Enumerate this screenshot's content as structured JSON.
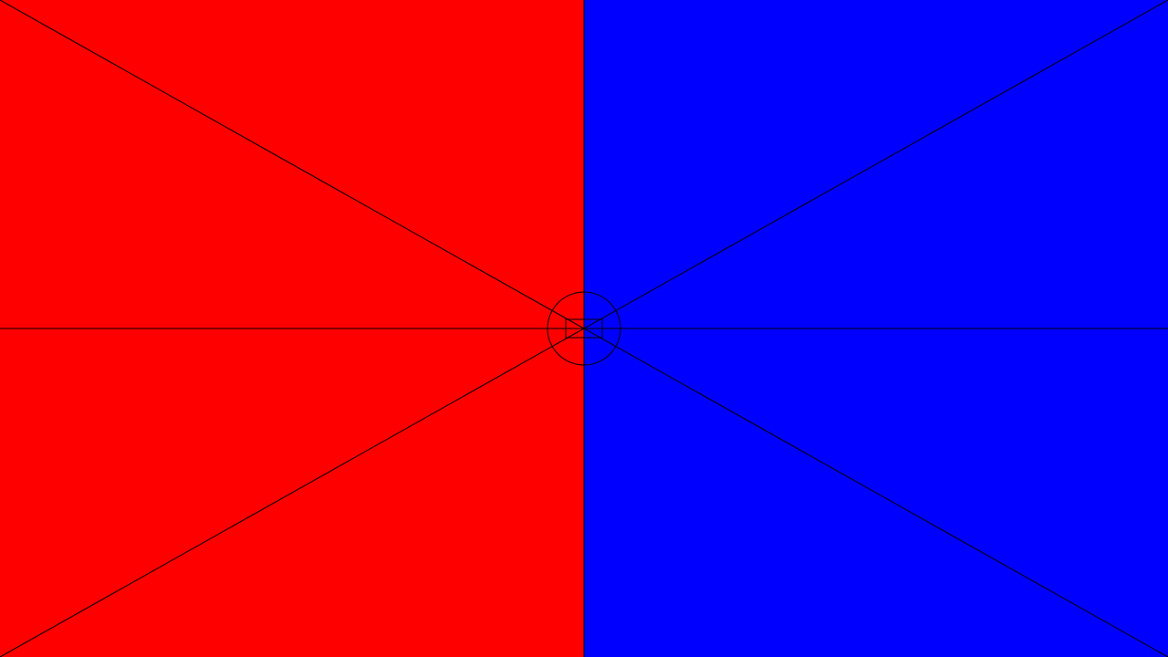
{
  "panels": {
    "left_color": "#ff0000",
    "right_color": "#0000ff"
  },
  "lines": {
    "stroke_color": "#000000"
  }
}
